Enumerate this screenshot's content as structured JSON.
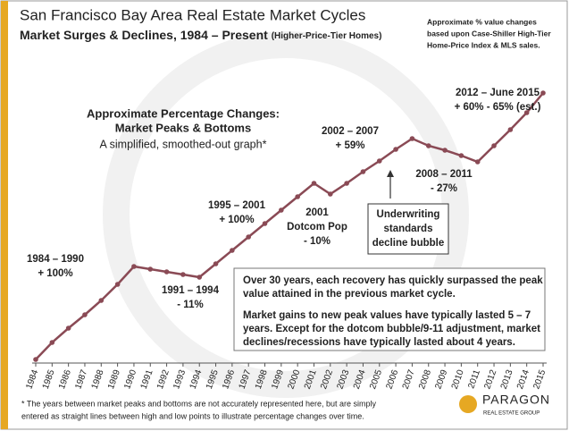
{
  "chart_data": {
    "type": "line",
    "title": "San Francisco Bay Area Real Estate Market Cycles",
    "subtitle": "Market Surges & Declines, 1984 – Present",
    "subtitle_note": "(Higher-Price-Tier Homes)",
    "source_note": [
      "Approximate % value changes",
      "based upon Case-Shiller High-Tier",
      "Home-Price Index & MLS sales."
    ],
    "heading": [
      "Approximate Percentage Changes:",
      "Market Peaks & Bottoms"
    ],
    "heading_sub": "A simplified, smoothed-out graph*",
    "categories": [
      "1984",
      "1985",
      "1986",
      "1987",
      "1988",
      "1989",
      "1990",
      "1991",
      "1992",
      "1993",
      "1994",
      "1995",
      "1996",
      "1997",
      "1998",
      "1999",
      "2000",
      "2001",
      "2002",
      "2003",
      "2004",
      "2005",
      "2006",
      "2007",
      "2008",
      "2009",
      "2010",
      "2011",
      "2012",
      "2013",
      "2014",
      "2015"
    ],
    "values": [
      8,
      27,
      43,
      58,
      74,
      92,
      112,
      109,
      106,
      103,
      100,
      115,
      130,
      145,
      160,
      175,
      190,
      205,
      193,
      205,
      218,
      230,
      243,
      255,
      247,
      242,
      236,
      229,
      247,
      265,
      284,
      306
    ],
    "ylim": [
      0,
      320
    ],
    "color": "#8a4a55",
    "annotations": [
      [
        "1984 – 1990",
        "+ 100%"
      ],
      [
        "1991 – 1994",
        "- 11%"
      ],
      [
        "1995 – 2001",
        "+ 100%"
      ],
      [
        "2001",
        "Dotcom Pop",
        "- 10%"
      ],
      [
        "2002 – 2007",
        "+ 59%"
      ],
      [
        "2008 – 2011",
        "- 27%"
      ],
      [
        "2012 – June 2015",
        "+ 60% - 65% (est.)"
      ],
      [
        "Underwriting",
        "standards",
        "decline bubble"
      ]
    ],
    "box_text": [
      [
        "Over 30 years, each recovery has quickly surpassed  the peak",
        "value attained in the previous market cycle."
      ],
      [
        "Market gains  to new peak values have typically lasted 5 – 7",
        "years. Except for the dotcom bubble/9-11 adjustment, market",
        "declines/recessions have typically lasted about 4 years."
      ]
    ],
    "footnote": [
      "* The years between market peaks and bottoms are not accurately represented here, but are simply",
      "entered as straight lines between high and low points to illustrate percentage changes over time."
    ],
    "logo": [
      "PARAGON",
      "REAL ESTATE GROUP"
    ]
  }
}
